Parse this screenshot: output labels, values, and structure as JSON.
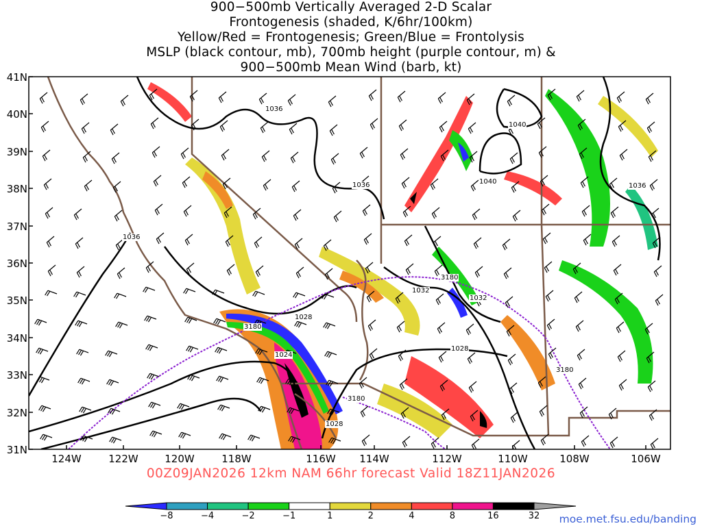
{
  "title_lines": [
    "900−500mb Vertically Averaged 2-D Scalar",
    "Frontogenesis (shaded, K/6hr/100km)",
    "Yellow/Red = Frontogenesis;  Green/Blue = Frontolysis",
    "MSLP (black contour, mb), 700mb height (purple contour, m) &",
    "900−500mb Mean Wind (barb, kt)"
  ],
  "lat_labels": [
    "41N",
    "40N",
    "39N",
    "38N",
    "37N",
    "36N",
    "35N",
    "34N",
    "33N",
    "32N",
    "31N"
  ],
  "lon_labels": [
    "124W",
    "122W",
    "120W",
    "118W",
    "116W",
    "114W",
    "112W",
    "110W",
    "108W",
    "106W"
  ],
  "footer": "00Z09JAN2026 12km NAM 66hr forecast Valid 18Z11JAN2026",
  "credit": "moe.met.fsu.edu/banding",
  "colorbar": {
    "labels": [
      "−8",
      "−4",
      "−2",
      "−1",
      "1",
      "2",
      "4",
      "8",
      "16",
      "32"
    ],
    "colors": [
      "#2b2bff",
      "#2ea0c0",
      "#20c480",
      "#1ad21a",
      "#ffffff",
      "#e3d83c",
      "#f08c28",
      "#ff4646",
      "#f0148c",
      "#000000",
      "#a0a0a0"
    ]
  },
  "contour_labels": {
    "mslp": [
      "1036",
      "1040",
      "1040",
      "1036",
      "1036",
      "1028",
      "1032",
      "1032",
      "1036",
      "1024",
      "1028",
      "1028"
    ],
    "height": [
      "3180",
      "3180",
      "3180",
      "3180"
    ]
  },
  "colors": {
    "mslp_contour": "#000000",
    "height_contour": "#8a1fd0",
    "borders": "#7a5a48",
    "footer": "#ff5555",
    "credit": "#3a5fd6"
  }
}
